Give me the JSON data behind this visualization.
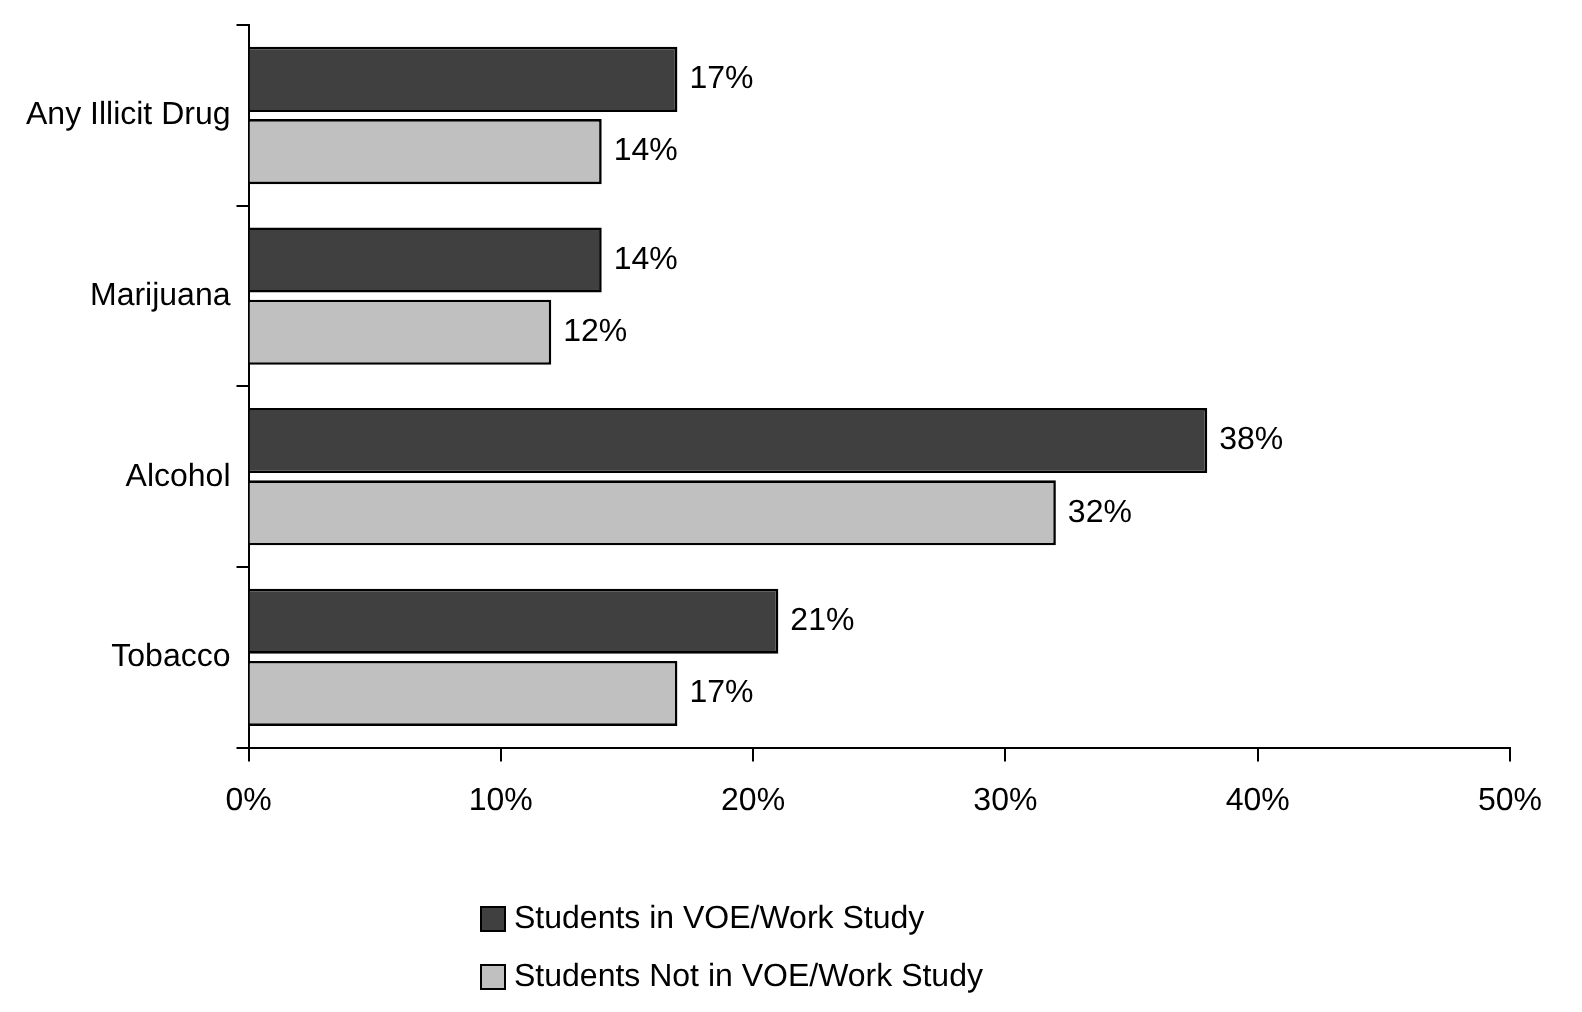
{
  "chart_data": {
    "type": "bar",
    "orientation": "horizontal",
    "categories": [
      "Any Illicit Drug",
      "Marijuana",
      "Alcohol",
      "Tobacco"
    ],
    "series": [
      {
        "name": "Students in VOE/Work Study",
        "color": "#404040",
        "values": [
          17,
          14,
          38,
          21
        ],
        "value_labels": [
          "17%",
          "14%",
          "38%",
          "21%"
        ]
      },
      {
        "name": "Students Not in VOE/Work Study",
        "color": "#c0c0c0",
        "values": [
          14,
          12,
          32,
          17
        ],
        "value_labels": [
          "14%",
          "12%",
          "32%",
          "17%"
        ]
      }
    ],
    "xlim": [
      0,
      50
    ],
    "xticks": [
      {
        "value": 0,
        "label": "0%"
      },
      {
        "value": 10,
        "label": "10%"
      },
      {
        "value": 20,
        "label": "20%"
      },
      {
        "value": 30,
        "label": "30%"
      },
      {
        "value": 40,
        "label": "40%"
      },
      {
        "value": 50,
        "label": "50%"
      }
    ],
    "grid": false,
    "legend": "bottom"
  }
}
